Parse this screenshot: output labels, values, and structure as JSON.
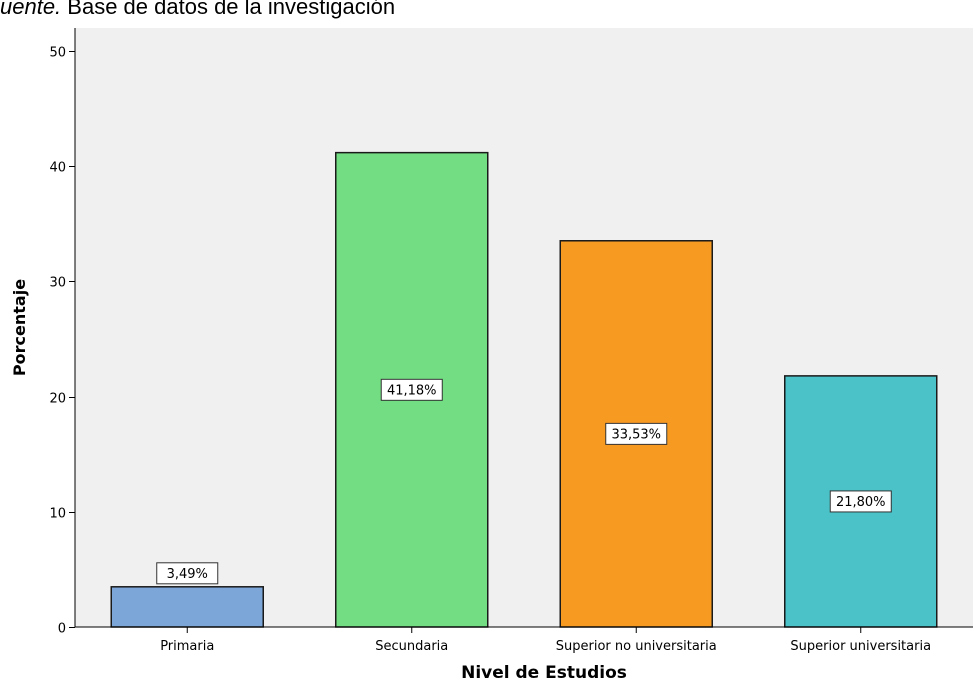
{
  "source_note": {
    "prefix": "uente.",
    "text": "Base de datos de la investigación"
  },
  "chart_data": {
    "type": "bar",
    "title": "",
    "xlabel": "Nivel de Estudios",
    "ylabel": "Porcentaje",
    "ylim": [
      0,
      52
    ],
    "yticks": [
      0,
      10,
      20,
      30,
      40,
      50
    ],
    "categories": [
      "Primaria",
      "Secundaria",
      "Superior no universitaria",
      "Superior universitaria"
    ],
    "values": [
      3.49,
      41.18,
      33.53,
      21.8
    ],
    "data_labels": [
      "3,49%",
      "41,18%",
      "33,53%",
      "21,80%"
    ],
    "colors": [
      "#7ba6d7",
      "#73dd83",
      "#f79a22",
      "#4ac2c8"
    ],
    "plot_background": "#f0f0f0",
    "grid": false
  }
}
